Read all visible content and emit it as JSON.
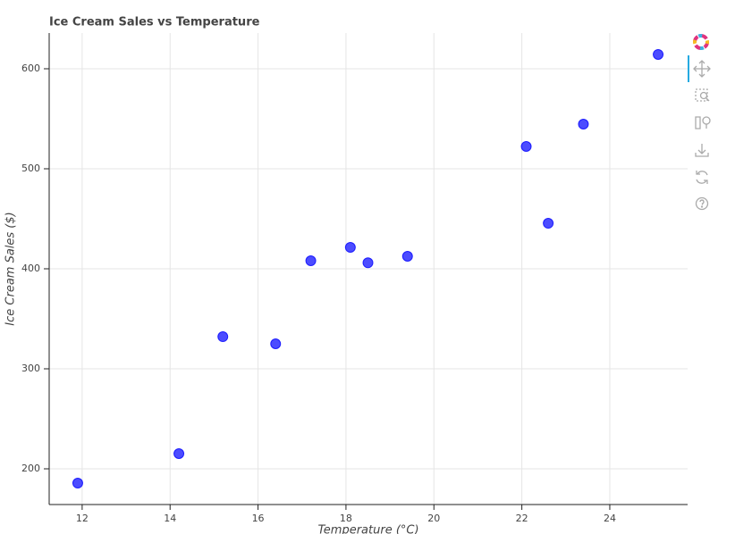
{
  "chart_data": {
    "type": "scatter",
    "title": "Ice Cream Sales vs Temperature",
    "x_label": "Temperature (°C)",
    "y_label": "Ice Cream Sales ($)",
    "x": [
      11.9,
      14.2,
      15.2,
      16.4,
      17.2,
      18.1,
      18.5,
      19.4,
      22.1,
      22.6,
      23.4,
      25.1
    ],
    "values": [
      185.7,
      215.2,
      332.1,
      325,
      408,
      421.4,
      406,
      412.5,
      522.3,
      445.5,
      544.6,
      614.3
    ],
    "color": "#0000ff",
    "xlim": [
      11.25,
      25.77
    ],
    "ylim": [
      164.3,
      635.7
    ],
    "xticks": [
      12,
      14,
      16,
      18,
      20,
      22,
      24
    ],
    "yticks": [
      200,
      300,
      400,
      500,
      600
    ],
    "grid": true
  }
}
